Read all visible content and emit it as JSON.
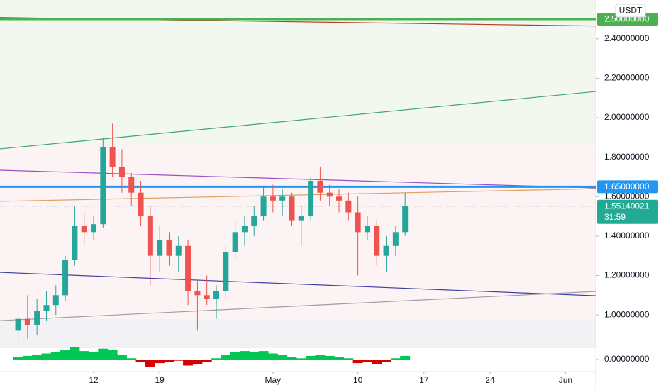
{
  "chart_data": [
    {
      "type": "candlestick",
      "currency": "USDT",
      "x": [
        4,
        5,
        6,
        7,
        8,
        9,
        10,
        11,
        12,
        13,
        14,
        15,
        16,
        17,
        18,
        19,
        20,
        21,
        22,
        23,
        24,
        25,
        26,
        27,
        28,
        29,
        30,
        31,
        32,
        33,
        34,
        35,
        36,
        37,
        38,
        39,
        40,
        41,
        42,
        43,
        44,
        45
      ],
      "open": [
        0.92,
        0.98,
        0.95,
        1.02,
        1.05,
        1.1,
        1.28,
        1.45,
        1.42,
        1.46,
        1.85,
        1.75,
        1.7,
        1.62,
        1.5,
        1.3,
        1.38,
        1.3,
        1.35,
        1.12,
        1.1,
        1.08,
        1.12,
        1.32,
        1.42,
        1.45,
        1.5,
        1.6,
        1.58,
        1.6,
        1.48,
        1.5,
        1.68,
        1.62,
        1.6,
        1.58,
        1.52,
        1.42,
        1.45,
        1.3,
        1.35,
        1.42
      ],
      "high": [
        1.05,
        1.1,
        1.08,
        1.12,
        1.15,
        1.3,
        1.55,
        1.52,
        1.5,
        1.9,
        1.97,
        1.84,
        1.72,
        1.68,
        1.55,
        1.45,
        1.42,
        1.4,
        1.38,
        1.18,
        1.2,
        1.15,
        1.35,
        1.48,
        1.5,
        1.55,
        1.65,
        1.66,
        1.64,
        1.62,
        1.55,
        1.7,
        1.75,
        1.66,
        1.64,
        1.62,
        1.6,
        1.5,
        1.48,
        1.4,
        1.45,
        1.62
      ],
      "low": [
        0.85,
        0.88,
        0.9,
        0.97,
        1.0,
        1.07,
        1.25,
        1.36,
        1.38,
        1.44,
        1.7,
        1.62,
        1.55,
        1.45,
        1.15,
        1.22,
        1.25,
        1.22,
        1.05,
        0.92,
        1.05,
        0.98,
        1.08,
        1.28,
        1.35,
        1.4,
        1.48,
        1.52,
        1.5,
        1.45,
        1.35,
        1.48,
        1.58,
        1.55,
        1.52,
        1.48,
        1.2,
        1.38,
        1.25,
        1.22,
        1.3,
        1.4
      ],
      "close": [
        0.98,
        0.95,
        1.02,
        1.05,
        1.1,
        1.28,
        1.45,
        1.42,
        1.46,
        1.85,
        1.75,
        1.7,
        1.62,
        1.5,
        1.3,
        1.38,
        1.3,
        1.35,
        1.12,
        1.1,
        1.08,
        1.12,
        1.32,
        1.42,
        1.45,
        1.5,
        1.6,
        1.58,
        1.6,
        1.48,
        1.5,
        1.68,
        1.62,
        1.6,
        1.58,
        1.52,
        1.42,
        1.45,
        1.3,
        1.35,
        1.42,
        1.5514
      ],
      "up_color": "#26a69a",
      "down_color": "#ef5350",
      "xlim": [
        2.08,
        65.2
      ],
      "xticks": [
        12,
        19,
        {
          "value": 31,
          "label": "May"
        },
        {
          "value": 40,
          "label": "10"
        },
        {
          "value": 47,
          "label": "17"
        },
        {
          "value": 54,
          "label": "24"
        },
        {
          "value": 62,
          "label": "Jun"
        }
      ],
      "ylim": [
        0.835,
        2.597
      ],
      "yticks": [
        {
          "value": 1.0,
          "label": "1.00000000"
        },
        {
          "value": 1.2,
          "label": "1.20000000"
        },
        {
          "value": 1.4,
          "label": "1.40000000"
        },
        {
          "value": 1.6,
          "label": "1.60000000"
        },
        {
          "value": 1.8,
          "label": "1.80000000"
        },
        {
          "value": 2.0,
          "label": "2.00000000"
        },
        {
          "value": 2.2,
          "label": "2.20000000"
        },
        {
          "value": 2.4,
          "label": "2.40000000"
        }
      ],
      "grid": false,
      "trend_lines": [
        {
          "color": "#c0392b",
          "x": [
            2.08,
            65.2
          ],
          "y": [
            2.508,
            2.465
          ]
        },
        {
          "color": "#3fa66a",
          "x": [
            2.08,
            65.2
          ],
          "y": [
            1.842,
            2.133
          ]
        },
        {
          "color": "#9c4fc4",
          "x": [
            2.08,
            65.2
          ],
          "y": [
            1.734,
            1.644
          ]
        },
        {
          "color": "#e0a060",
          "x": [
            2.08,
            65.2
          ],
          "y": [
            1.576,
            1.64
          ]
        },
        {
          "color": "#3f3fa0",
          "x": [
            2.08,
            65.2
          ],
          "y": [
            1.216,
            1.097
          ]
        },
        {
          "color": "#9e9e9e",
          "x": [
            2.08,
            65.2
          ],
          "y": [
            0.971,
            1.119
          ]
        }
      ],
      "horizontal_lines": [
        {
          "value": 2.5,
          "label": "2.50000000",
          "color": "#4caf50"
        },
        {
          "value": 1.65,
          "label": "1.65000000",
          "color": "#2196f3"
        }
      ],
      "last_price": {
        "value": 1.55140021,
        "label": "1.55140021",
        "countdown": "31:59",
        "color": "#22ab94"
      }
    },
    {
      "type": "oscillator",
      "x": [
        4,
        5,
        6,
        7,
        8,
        9,
        10,
        11,
        12,
        13,
        14,
        15,
        16,
        17,
        18,
        19,
        20,
        21,
        22,
        23,
        24,
        25,
        26,
        27,
        28,
        29,
        30,
        31,
        32,
        33,
        34,
        35,
        36,
        37,
        38,
        39,
        40,
        41,
        42,
        43,
        44,
        45
      ],
      "values": [
        0.02,
        0.03,
        0.04,
        0.05,
        0.06,
        0.08,
        0.1,
        0.07,
        0.06,
        0.09,
        0.08,
        0.04,
        0.01,
        -0.02,
        -0.06,
        -0.03,
        -0.02,
        -0.01,
        -0.05,
        -0.04,
        -0.02,
        0.01,
        0.04,
        0.06,
        0.07,
        0.06,
        0.07,
        0.05,
        0.04,
        0.02,
        0.01,
        0.03,
        0.04,
        0.03,
        0.02,
        0.01,
        -0.03,
        -0.02,
        -0.04,
        -0.02,
        0.01,
        0.03
      ],
      "up_color": "#00c853",
      "down_color": "#d50000",
      "ylim": [
        -0.1,
        0.1
      ],
      "yticks": [
        {
          "value": 0,
          "label": "0.00000000"
        }
      ]
    }
  ]
}
